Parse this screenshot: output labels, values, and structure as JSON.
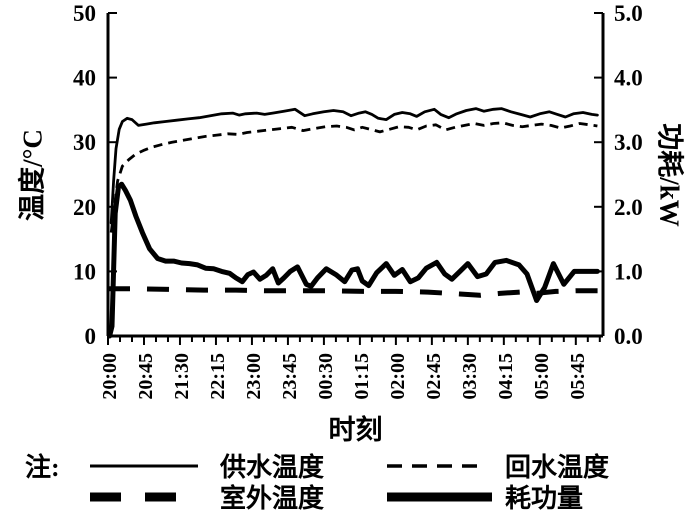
{
  "figure": {
    "x_axis_title": "时刻",
    "y_axis_title_left": "温度/°C",
    "y_axis_title_right": "功耗/kW",
    "background_color": "#ffffff",
    "ink_color": "#000000"
  },
  "chart_data": {
    "type": "line",
    "title": "",
    "xlabel": "时刻",
    "ylabel_left": "温度/°C",
    "ylabel_right": "功耗/kW",
    "grid": false,
    "legend_position": "bottom",
    "x_axis": {
      "unit": "minutes after 20:00",
      "min_minutes": 0,
      "max_minutes": 619,
      "minor_tick_interval_min": 15,
      "major_tick_interval_min": 45,
      "tick_labels": [
        "20:00",
        "20:45",
        "21:30",
        "22:15",
        "23:00",
        "23:45",
        "00:30",
        "01:15",
        "02:00",
        "02:45",
        "03:30",
        "04:15",
        "05:00",
        "05:45"
      ]
    },
    "y_left": {
      "label": "温度/°C",
      "min": 0,
      "max": 50,
      "ticks": [
        "0",
        "10",
        "20",
        "30",
        "40",
        "50"
      ]
    },
    "y_right": {
      "label": "功耗/kW",
      "min": 0,
      "max": 5,
      "ticks": [
        "0.0",
        "1.0",
        "2.0",
        "3.0",
        "4.0",
        "5.0"
      ]
    },
    "legend": {
      "note": "注:"
    },
    "series": [
      {
        "name": "供水温度",
        "axis": "left",
        "style": "thin-solid",
        "unit": "°C",
        "points": [
          [
            4,
            17.5
          ],
          [
            7,
            24
          ],
          [
            10,
            29
          ],
          [
            14,
            32
          ],
          [
            18,
            33.2
          ],
          [
            24,
            33.7
          ],
          [
            30,
            33.5
          ],
          [
            38,
            32.6
          ],
          [
            48,
            32.8
          ],
          [
            58,
            33
          ],
          [
            72,
            33.2
          ],
          [
            86,
            33.4
          ],
          [
            100,
            33.6
          ],
          [
            114,
            33.8
          ],
          [
            128,
            34.1
          ],
          [
            142,
            34.4
          ],
          [
            156,
            34.5
          ],
          [
            164,
            34.2
          ],
          [
            172,
            34.4
          ],
          [
            186,
            34.5
          ],
          [
            196,
            34.3
          ],
          [
            206,
            34.5
          ],
          [
            220,
            34.8
          ],
          [
            234,
            35.1
          ],
          [
            246,
            34.1
          ],
          [
            256,
            34.4
          ],
          [
            270,
            34.7
          ],
          [
            282,
            34.9
          ],
          [
            294,
            34.7
          ],
          [
            304,
            34.1
          ],
          [
            314,
            34.5
          ],
          [
            322,
            34.7
          ],
          [
            330,
            34.3
          ],
          [
            338,
            33.7
          ],
          [
            348,
            33.5
          ],
          [
            358,
            34.3
          ],
          [
            368,
            34.6
          ],
          [
            378,
            34.4
          ],
          [
            386,
            34
          ],
          [
            396,
            34.7
          ],
          [
            408,
            35.1
          ],
          [
            416,
            34.3
          ],
          [
            426,
            33.8
          ],
          [
            436,
            34.4
          ],
          [
            448,
            34.9
          ],
          [
            460,
            35.2
          ],
          [
            470,
            34.8
          ],
          [
            482,
            35.1
          ],
          [
            492,
            35.2
          ],
          [
            504,
            34.7
          ],
          [
            516,
            34.3
          ],
          [
            528,
            33.9
          ],
          [
            540,
            34.4
          ],
          [
            552,
            34.7
          ],
          [
            562,
            34.3
          ],
          [
            572,
            33.9
          ],
          [
            582,
            34.4
          ],
          [
            594,
            34.6
          ],
          [
            605,
            34.3
          ],
          [
            612,
            34.2
          ]
        ]
      },
      {
        "name": "回水温度",
        "axis": "left",
        "style": "thin-dashed",
        "unit": "°C",
        "points": [
          [
            4,
            16
          ],
          [
            8,
            20
          ],
          [
            12,
            24
          ],
          [
            18,
            26.3
          ],
          [
            26,
            27.3
          ],
          [
            34,
            28.1
          ],
          [
            44,
            28.7
          ],
          [
            54,
            29.2
          ],
          [
            66,
            29.6
          ],
          [
            80,
            30
          ],
          [
            94,
            30.3
          ],
          [
            108,
            30.6
          ],
          [
            122,
            30.9
          ],
          [
            136,
            31.1
          ],
          [
            150,
            31.3
          ],
          [
            162,
            31.2
          ],
          [
            174,
            31.5
          ],
          [
            188,
            31.7
          ],
          [
            202,
            31.9
          ],
          [
            216,
            32.1
          ],
          [
            230,
            32.3
          ],
          [
            244,
            31.8
          ],
          [
            258,
            32.1
          ],
          [
            272,
            32.4
          ],
          [
            286,
            32.5
          ],
          [
            298,
            32.3
          ],
          [
            308,
            31.9
          ],
          [
            318,
            32.3
          ],
          [
            328,
            32
          ],
          [
            340,
            31.6
          ],
          [
            352,
            32
          ],
          [
            364,
            32.4
          ],
          [
            376,
            32.3
          ],
          [
            386,
            31.9
          ],
          [
            398,
            32.5
          ],
          [
            410,
            32.7
          ],
          [
            422,
            31.9
          ],
          [
            434,
            32.3
          ],
          [
            446,
            32.6
          ],
          [
            458,
            32.9
          ],
          [
            470,
            32.6
          ],
          [
            482,
            32.9
          ],
          [
            494,
            33
          ],
          [
            506,
            32.6
          ],
          [
            518,
            32.4
          ],
          [
            530,
            32.6
          ],
          [
            542,
            32.8
          ],
          [
            554,
            32.6
          ],
          [
            566,
            32.2
          ],
          [
            578,
            32.5
          ],
          [
            590,
            32.9
          ],
          [
            602,
            32.7
          ],
          [
            612,
            32.5
          ]
        ]
      },
      {
        "name": "室外温度",
        "axis": "left",
        "style": "thick-dashed",
        "unit": "°C",
        "points": [
          [
            0,
            7.3
          ],
          [
            40,
            7.3
          ],
          [
            80,
            7.2
          ],
          [
            120,
            7.1
          ],
          [
            160,
            7.1
          ],
          [
            200,
            7
          ],
          [
            240,
            7
          ],
          [
            280,
            7
          ],
          [
            320,
            6.9
          ],
          [
            360,
            6.9
          ],
          [
            400,
            6.8
          ],
          [
            440,
            6.5
          ],
          [
            465,
            6.3
          ],
          [
            490,
            6.6
          ],
          [
            515,
            6.8
          ],
          [
            535,
            6.6
          ],
          [
            560,
            6.9
          ],
          [
            585,
            7
          ],
          [
            615,
            7
          ]
        ]
      },
      {
        "name": "耗功量",
        "axis": "right",
        "style": "thick-solid",
        "unit": "kW",
        "points": [
          [
            2,
            0
          ],
          [
            5,
            0.15
          ],
          [
            9,
            1.9
          ],
          [
            13,
            2.3
          ],
          [
            17,
            2.35
          ],
          [
            22,
            2.25
          ],
          [
            28,
            2.1
          ],
          [
            35,
            1.85
          ],
          [
            43,
            1.6
          ],
          [
            52,
            1.35
          ],
          [
            62,
            1.2
          ],
          [
            72,
            1.16
          ],
          [
            82,
            1.16
          ],
          [
            92,
            1.13
          ],
          [
            102,
            1.12
          ],
          [
            112,
            1.1
          ],
          [
            122,
            1.05
          ],
          [
            132,
            1.04
          ],
          [
            142,
            1
          ],
          [
            152,
            0.97
          ],
          [
            160,
            0.9
          ],
          [
            168,
            0.84
          ],
          [
            175,
            0.95
          ],
          [
            182,
            0.99
          ],
          [
            190,
            0.88
          ],
          [
            198,
            0.94
          ],
          [
            206,
            1.04
          ],
          [
            213,
            0.82
          ],
          [
            220,
            0.9
          ],
          [
            228,
            1
          ],
          [
            237,
            1.07
          ],
          [
            248,
            0.8
          ],
          [
            254,
            0.77
          ],
          [
            262,
            0.9
          ],
          [
            273,
            1.04
          ],
          [
            285,
            0.95
          ],
          [
            296,
            0.84
          ],
          [
            305,
            1.02
          ],
          [
            312,
            1.04
          ],
          [
            318,
            0.85
          ],
          [
            326,
            0.78
          ],
          [
            336,
            0.98
          ],
          [
            348,
            1.12
          ],
          [
            358,
            0.94
          ],
          [
            368,
            1.03
          ],
          [
            378,
            0.84
          ],
          [
            388,
            0.9
          ],
          [
            398,
            1.05
          ],
          [
            411,
            1.14
          ],
          [
            421,
            0.96
          ],
          [
            430,
            0.88
          ],
          [
            440,
            1
          ],
          [
            450,
            1.12
          ],
          [
            462,
            0.92
          ],
          [
            473,
            0.96
          ],
          [
            484,
            1.14
          ],
          [
            498,
            1.17
          ],
          [
            514,
            1.1
          ],
          [
            524,
            0.96
          ],
          [
            536,
            0.55
          ],
          [
            546,
            0.75
          ],
          [
            557,
            1.12
          ],
          [
            570,
            0.8
          ],
          [
            583,
            1
          ],
          [
            600,
            1
          ],
          [
            612,
            1
          ]
        ]
      }
    ]
  }
}
